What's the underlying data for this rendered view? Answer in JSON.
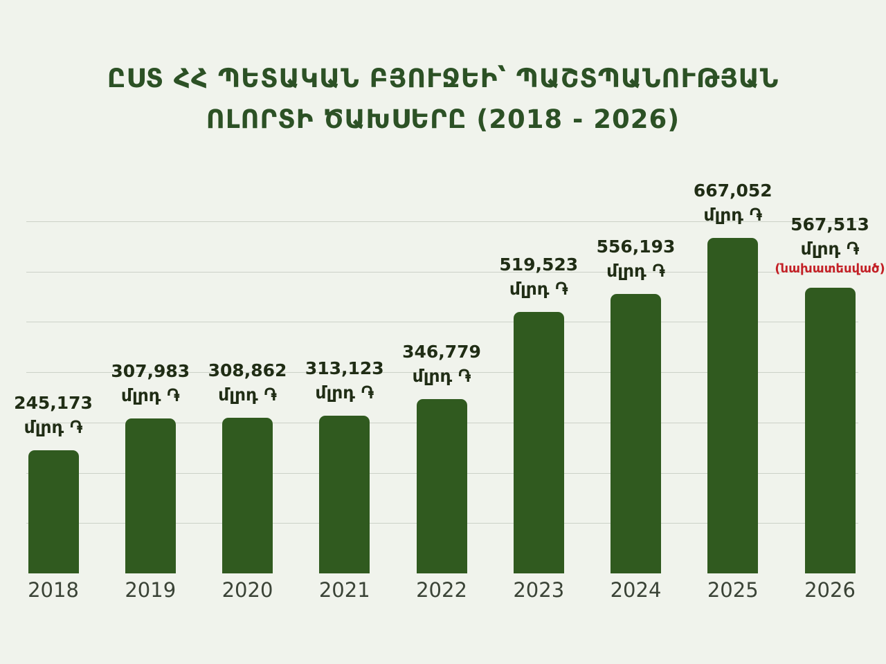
{
  "title": {
    "line1": "ԸՍՏ ՀՀ ՊԵՏԱԿԱՆ ԲՅՈՒՋԵԻ՝ ՊԱՇՏՊԱՆՈՒԹՅԱՆ",
    "line2": "ՈԼՈՐՏԻ ԾԱԽՍԵՐԸ (2018 - 2026)"
  },
  "chart_data": {
    "type": "bar",
    "title": "ԸՍՏ ՀՀ ՊԵՏԱԿԱՆ ԲՅՈՒՋԵԻ՝ ՊԱՇՏՊԱՆՈՒԹՅԱՆ ՈԼՈՐՏԻ ԾԱԽՍԵՐԸ (2018 - 2026)",
    "categories": [
      "2018",
      "2019",
      "2020",
      "2021",
      "2022",
      "2023",
      "2024",
      "2025",
      "2026"
    ],
    "values": [
      245173,
      307983,
      308862,
      313123,
      346779,
      519523,
      556193,
      667052,
      567513
    ],
    "value_labels": [
      "245,173",
      "307,983",
      "308,862",
      "313,123",
      "346,779",
      "519,523",
      "556,193",
      "667,052",
      "567,513"
    ],
    "unit_label": "մլրդ ֏",
    "note": {
      "text": "(նախատեսված)",
      "applies_to_category": "2026",
      "applies_to_index": 8
    },
    "xlabel": "",
    "ylabel": "",
    "ylim": [
      0,
      700000
    ],
    "gridline_step": 100000,
    "grid": true,
    "legend": false,
    "bar_color": "#305a1f"
  },
  "colors": {
    "background": "#f0f3ec",
    "bar": "#305a1f",
    "title": "#2c5125",
    "value_label": "#202d15",
    "year_tick": "#3a4336",
    "gridline": "#ccd1c7",
    "note_red": "#c32026"
  }
}
